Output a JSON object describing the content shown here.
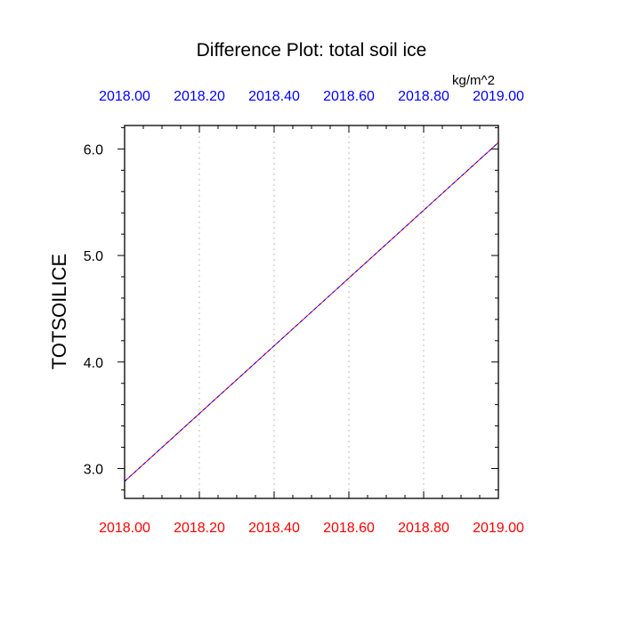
{
  "chart_data": {
    "type": "line",
    "title": "Difference Plot: total soil ice",
    "units": "kg/m^2",
    "ylabel": "TOTSOILICE",
    "xlabel": "",
    "xlim": [
      2018.0,
      2019.0
    ],
    "ylim": [
      2.72,
      6.22
    ],
    "x_ticks": [
      2018.0,
      2018.2,
      2018.4,
      2018.6,
      2018.8,
      2019.0
    ],
    "x_tick_labels": [
      "2018.00",
      "2018.20",
      "2018.40",
      "2018.60",
      "2018.80",
      "2019.00"
    ],
    "y_ticks": [
      3.0,
      4.0,
      5.0,
      6.0
    ],
    "y_tick_labels": [
      "3.0",
      "4.0",
      "5.0",
      "6.0"
    ],
    "grid": "vertical dotted",
    "top_axis_color": "#0000ff",
    "bottom_axis_color": "#ff0000",
    "series": [
      {
        "x": [
          2018.0,
          2019.0
        ],
        "values": [
          2.88,
          6.06
        ],
        "color": "#ff0000",
        "style": "solid"
      },
      {
        "x": [
          2018.0,
          2019.0
        ],
        "values": [
          2.88,
          6.06
        ],
        "color": "#0000ff",
        "style": "dashed"
      }
    ]
  }
}
